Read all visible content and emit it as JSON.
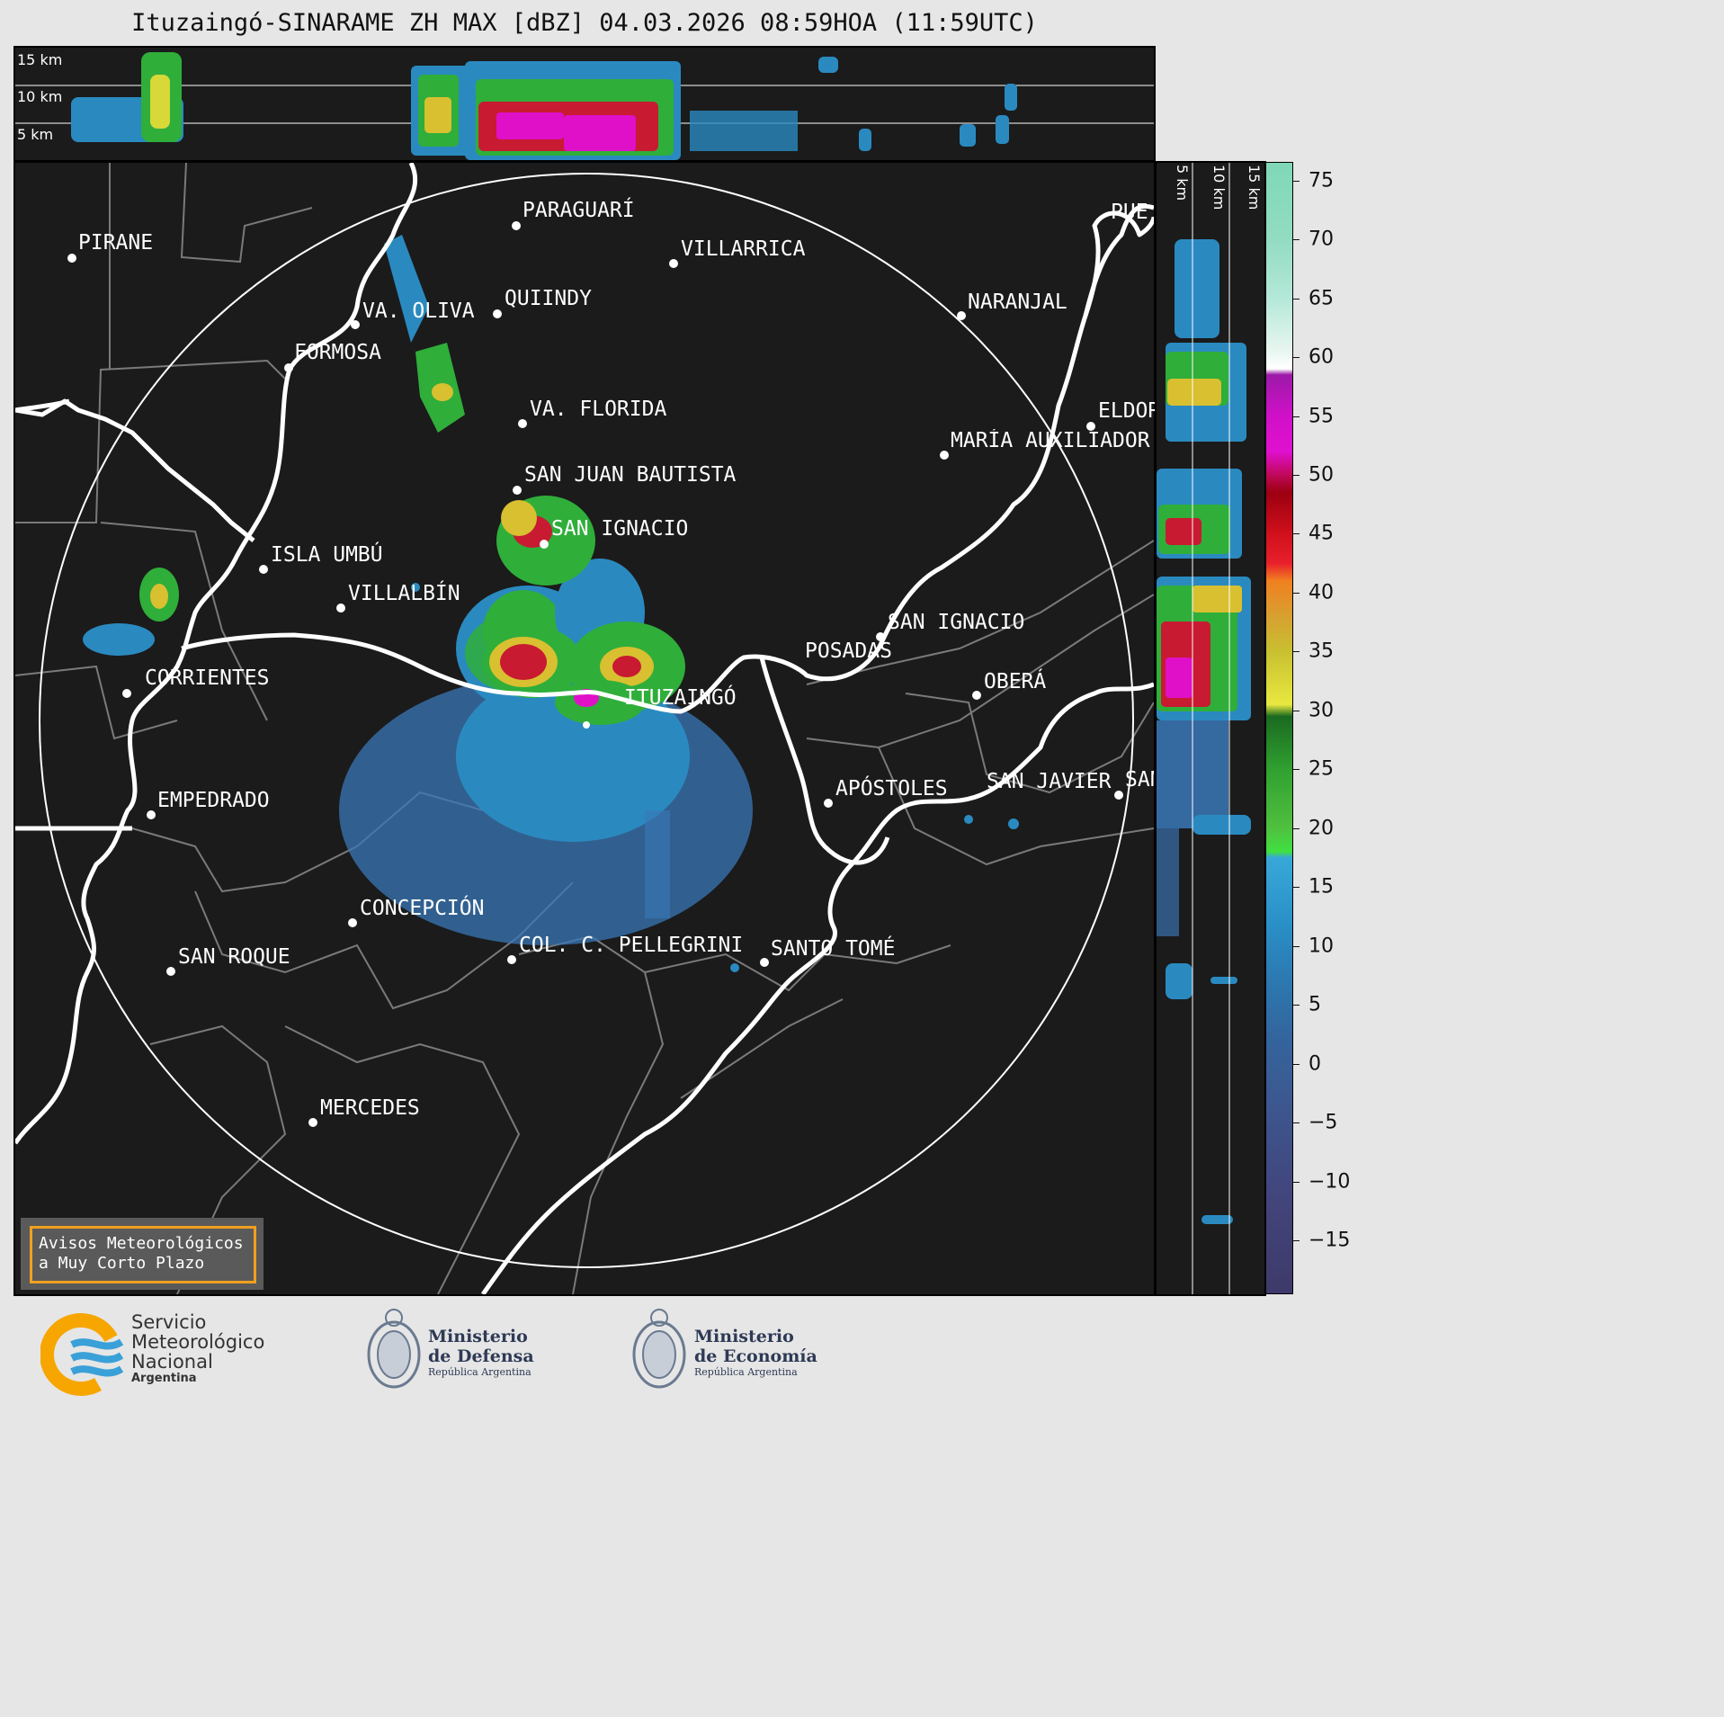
{
  "title": "Ituzaingó-SINARAME ZH MAX [dBZ] 04.03.2026 08:59HOA (11:59UTC)",
  "top_profile": {
    "height_labels": [
      "15 km",
      "10 km",
      "5 km"
    ]
  },
  "side_profile": {
    "height_labels": [
      "5 km",
      "10 km",
      "15 km"
    ]
  },
  "map": {
    "places": [
      {
        "name": "PIRANE"
      },
      {
        "name": "PARAGUARÍ"
      },
      {
        "name": "VILLARRICA"
      },
      {
        "name": "VA. OLIVA"
      },
      {
        "name": "QUIINDY"
      },
      {
        "name": "NARANJAL"
      },
      {
        "name": "FORMOSA"
      },
      {
        "name": "VA. FLORIDA"
      },
      {
        "name": "ELDOR"
      },
      {
        "name": "MARÍA AUXILIADOR"
      },
      {
        "name": "SAN JUAN BAUTISTA"
      },
      {
        "name": "SAN IGNACIO"
      },
      {
        "name": "ISLA UMBÚ"
      },
      {
        "name": "VILLALBÍN"
      },
      {
        "name": "SAN IGNACIO"
      },
      {
        "name": "POSADAS"
      },
      {
        "name": "CORRIENTES"
      },
      {
        "name": "ITUZAINGÓ"
      },
      {
        "name": "OBERÁ"
      },
      {
        "name": "EMPEDRADO"
      },
      {
        "name": "APÓSTOLES"
      },
      {
        "name": "SAN JAVIER"
      },
      {
        "name": "SAN"
      },
      {
        "name": "CONCEPCIÓN"
      },
      {
        "name": "COL. C. PELLEGRINI"
      },
      {
        "name": "SANTO TOMÉ"
      },
      {
        "name": "SAN ROQUE"
      },
      {
        "name": "MERCEDES"
      },
      {
        "name": "PUE"
      }
    ]
  },
  "warning_box": {
    "line1": "Avisos Meteorológicos",
    "line2": "a Muy Corto Plazo"
  },
  "colorbar": {
    "ticks": [
      "75",
      "70",
      "65",
      "60",
      "55",
      "50",
      "45",
      "40",
      "35",
      "30",
      "25",
      "20",
      "15",
      "10",
      "5",
      "0",
      "−5",
      "−10",
      "−15"
    ],
    "range": [
      -19.5,
      76.5
    ]
  },
  "logos": {
    "smn": {
      "line1": "Servicio",
      "line2": "Meteorológico",
      "line3": "Nacional",
      "line4": "Argentina"
    },
    "defensa": {
      "line1": "Ministerio",
      "line2": "de Defensa",
      "line3": "República Argentina"
    },
    "economia": {
      "line1": "Ministerio",
      "line2": "de Economía",
      "line3": "República Argentina"
    }
  },
  "colors": {
    "background": "#1b1b1b",
    "ring": "#ffffff",
    "rivers": "#ffffff",
    "borders": "#7a7a7a",
    "warning_border": "#f0a020",
    "smn_orange": "#f7a600",
    "smn_blue": "#3aa0d8"
  }
}
